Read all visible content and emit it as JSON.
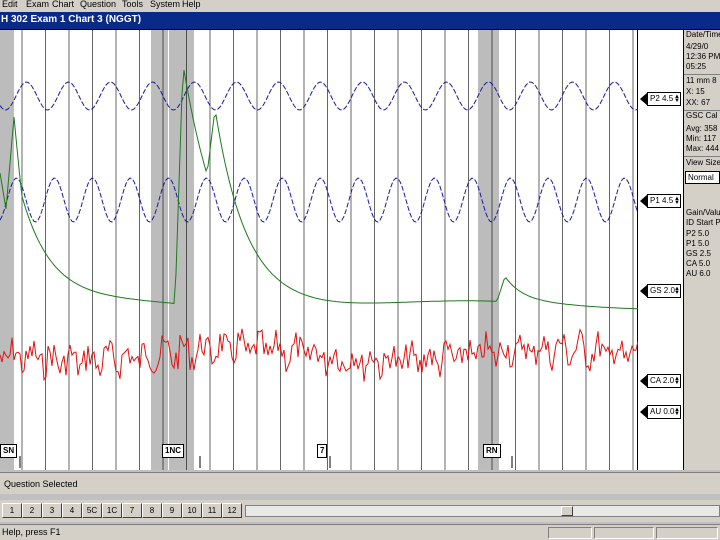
{
  "menu": {
    "items": [
      "Edit",
      "Exam",
      "Chart",
      "Question",
      "Tools",
      "System",
      "Help"
    ]
  },
  "title": "H 302   Exam 1   Chart 3 (NGGT)",
  "channels": [
    {
      "name": "P2",
      "scale": "4.5",
      "color": "#1a1aa0"
    },
    {
      "name": "P1",
      "scale": "4.5",
      "color": "#1a1aa0"
    },
    {
      "name": "GS",
      "scale": "2.0",
      "color": "#1e7a1e"
    },
    {
      "name": "CA",
      "scale": "2.0",
      "color": "#e01010"
    },
    {
      "name": "AU",
      "scale": "0.0",
      "color": "#000000"
    }
  ],
  "panel": {
    "date_heading": "Date/Time",
    "date": "4/29/0",
    "time": "12:36 PM",
    "time2": "05:25",
    "line4": "11 mm 8",
    "line5": "X:  15",
    "line6": "XX:  67",
    "gsc_heading": "GSC Cal",
    "line8": "Avg: 358",
    "line9": "Min: 117",
    "line10": "Max: 444",
    "view_heading": "View Size",
    "view_value": "Normal",
    "gain_heading": "Gain/Value",
    "idstart": "ID Start Pt",
    "gains": [
      "P2  5.0",
      "P1  5.0",
      "GS  2.5",
      "CA  5.0",
      "AU  6.0"
    ]
  },
  "question_marks": [
    {
      "label": "SN",
      "color": "#000000"
    },
    {
      "label": "1NC",
      "color": "#000000"
    },
    {
      "label": "7",
      "color": "#000000"
    },
    {
      "label": "RN",
      "color": "#000000"
    }
  ],
  "question_status": "Question Selected",
  "toolbar": {
    "buttons": [
      "1",
      "2",
      "3",
      "4",
      "5C",
      "1C",
      "7",
      "8",
      "9",
      "10",
      "11",
      "12"
    ]
  },
  "status": "Help, press F1",
  "colors": {
    "title_bg": "#0a2a8a",
    "chart_bg": "#ffffff",
    "question_band": "#bcbcbc"
  }
}
